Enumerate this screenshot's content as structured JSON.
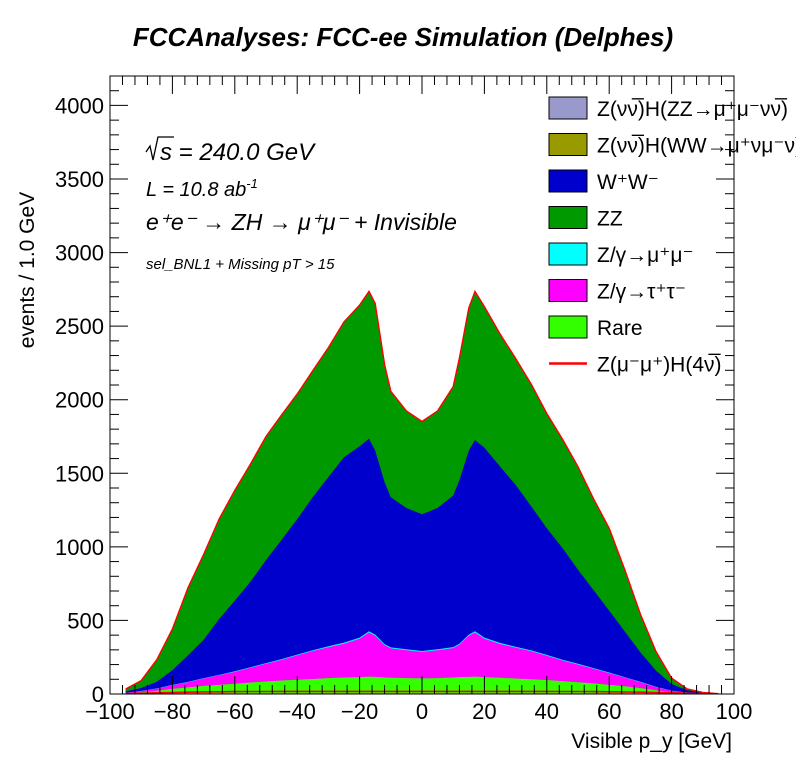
{
  "chart_data": {
    "type": "area",
    "stacked": true,
    "title": "FCCAnalyses: FCC-ee Simulation (Delphes)",
    "xlabel": "Visible p_y [GeV]",
    "ylabel": "events / 1.0 GeV",
    "xlim": [
      -100,
      100
    ],
    "ylim": [
      0,
      4200
    ],
    "x_ticks": [
      "−100",
      "−80",
      "−60",
      "−40",
      "−20",
      "0",
      "20",
      "40",
      "60",
      "80",
      "100"
    ],
    "y_ticks": [
      "0",
      "500",
      "1000",
      "1500",
      "2000",
      "2500",
      "3000",
      "3500",
      "4000"
    ],
    "annotations": {
      "sqrt_s": "s = 240.0 GeV",
      "lumi": "L = 10.8 ab",
      "lumi_exp": "-1",
      "process": "e⁺e⁻ → ZH → μ⁺μ⁻ + Invisible",
      "selection": "sel_BNL1 + Missing pT > 15"
    },
    "x": [
      -95,
      -90,
      -85,
      -80,
      -75,
      -70,
      -65,
      -60,
      -55,
      -50,
      -45,
      -40,
      -35,
      -30,
      -25,
      -20,
      -17,
      -15,
      -12,
      -10,
      -5,
      0,
      5,
      10,
      12,
      15,
      17,
      20,
      25,
      30,
      35,
      40,
      45,
      50,
      55,
      60,
      65,
      70,
      75,
      80,
      85,
      90,
      95
    ],
    "series": [
      {
        "name": "Rare",
        "color": "#33ff00",
        "values": [
          5,
          12,
          22,
          35,
          45,
          55,
          62,
          70,
          78,
          85,
          92,
          97,
          102,
          108,
          112,
          115,
          118,
          116,
          112,
          110,
          108,
          106,
          108,
          112,
          115,
          116,
          118,
          115,
          110,
          105,
          100,
          95,
          88,
          80,
          72,
          62,
          52,
          40,
          25,
          12,
          5,
          2,
          0
        ]
      },
      {
        "name": "Z/γ→τ⁺τ⁻",
        "color": "#ff00ff",
        "values": [
          3,
          8,
          15,
          25,
          35,
          50,
          65,
          80,
          100,
          120,
          140,
          165,
          190,
          210,
          230,
          260,
          300,
          280,
          220,
          200,
          190,
          180,
          190,
          200,
          220,
          280,
          300,
          260,
          230,
          210,
          190,
          165,
          140,
          120,
          100,
          80,
          60,
          40,
          22,
          10,
          4,
          1,
          0
        ]
      },
      {
        "name": "Z/γ→μ⁺μ⁻",
        "color": "#00ffff",
        "values": [
          0,
          1,
          1,
          2,
          2,
          3,
          3,
          4,
          4,
          5,
          5,
          6,
          6,
          6,
          7,
          8,
          8,
          8,
          7,
          7,
          6,
          6,
          6,
          7,
          7,
          8,
          8,
          8,
          7,
          6,
          6,
          6,
          5,
          5,
          4,
          4,
          3,
          3,
          2,
          1,
          1,
          0,
          0
        ]
      },
      {
        "name": "W⁺W⁻",
        "color": "#0000cc",
        "values": [
          10,
          20,
          45,
          100,
          180,
          260,
          380,
          480,
          580,
          700,
          810,
          920,
          1040,
          1150,
          1260,
          1300,
          1310,
          1250,
          1100,
          1020,
          960,
          930,
          960,
          1030,
          1110,
          1250,
          1300,
          1290,
          1200,
          1100,
          980,
          860,
          760,
          640,
          530,
          420,
          310,
          200,
          110,
          45,
          15,
          5,
          2
        ]
      },
      {
        "name": "ZZ",
        "color": "#009900",
        "values": [
          15,
          50,
          150,
          280,
          460,
          580,
          680,
          750,
          800,
          840,
          850,
          850,
          860,
          880,
          920,
          960,
          1000,
          1000,
          800,
          720,
          660,
          630,
          660,
          740,
          830,
          970,
          1010,
          960,
          900,
          860,
          830,
          780,
          740,
          700,
          620,
          560,
          420,
          260,
          130,
          40,
          10,
          3,
          0
        ]
      },
      {
        "name": "Z(νν̅)H(WW→μ⁺νμ⁻ν)",
        "color": "#999900",
        "values": [
          0,
          0,
          0,
          0,
          0,
          0,
          0,
          0,
          0,
          0,
          0,
          0,
          0,
          0,
          0,
          0,
          0,
          0,
          0,
          0,
          0,
          0,
          0,
          0,
          0,
          0,
          0,
          0,
          0,
          0,
          0,
          0,
          0,
          0,
          0,
          0,
          0,
          0,
          0,
          0,
          0,
          0,
          0
        ]
      },
      {
        "name": "Z(νν̅)H(ZZ→μ⁺μ⁻νν̅)",
        "color": "#9999cc",
        "values": [
          0,
          0,
          0,
          0,
          0,
          0,
          0,
          0,
          0,
          0,
          0,
          0,
          0,
          0,
          0,
          0,
          0,
          0,
          0,
          0,
          0,
          0,
          0,
          0,
          0,
          0,
          0,
          0,
          0,
          0,
          0,
          0,
          0,
          0,
          0,
          0,
          0,
          0,
          0,
          0,
          0,
          0,
          0
        ]
      },
      {
        "name": "Z(μ⁻μ⁺)H(4ν)",
        "color": "#ff0000",
        "style": "line",
        "values": [
          2,
          5,
          8,
          10,
          12,
          14,
          15,
          16,
          17,
          17,
          18,
          18,
          18,
          18,
          18,
          18,
          18,
          18,
          18,
          18,
          18,
          18,
          18,
          18,
          18,
          18,
          18,
          18,
          18,
          18,
          18,
          18,
          17,
          17,
          16,
          15,
          14,
          12,
          10,
          8,
          5,
          2,
          1
        ]
      }
    ],
    "legend": {
      "placement": "top-right",
      "entries": [
        {
          "label": "Z(νν̅)H(ZZ→μ⁺μ⁻νν̅)",
          "color": "#9999cc",
          "kind": "box"
        },
        {
          "label": "Z(νν̅)H(WW→μ⁺νμ⁻ν)",
          "color": "#999900",
          "kind": "box"
        },
        {
          "label": "W⁺W⁻",
          "color": "#0000cc",
          "kind": "box"
        },
        {
          "label": "ZZ",
          "color": "#009900",
          "kind": "box"
        },
        {
          "label": "Z/γ→μ⁺μ⁻",
          "color": "#00ffff",
          "kind": "box"
        },
        {
          "label": "Z/γ→τ⁺τ⁻",
          "color": "#ff00ff",
          "kind": "box"
        },
        {
          "label": "Rare",
          "color": "#33ff00",
          "kind": "box"
        },
        {
          "label": "Z(μ⁻μ⁺)H(4ν̅)",
          "color": "#ff0000",
          "kind": "line"
        }
      ]
    },
    "grid": false
  }
}
